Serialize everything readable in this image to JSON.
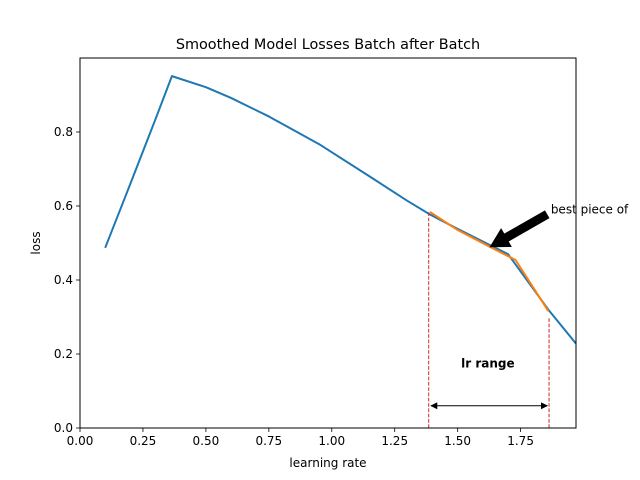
{
  "chart_data": {
    "type": "line",
    "title": "Smoothed Model Losses Batch after Batch",
    "xlabel": "learning rate",
    "ylabel": "loss",
    "xlim": [
      0.0,
      1.97
    ],
    "ylim": [
      0.0,
      1.0
    ],
    "xticks": [
      "0.00",
      "0.25",
      "0.50",
      "0.75",
      "1.00",
      "1.25",
      "1.50",
      "1.75"
    ],
    "yticks": [
      "0.0",
      "0.2",
      "0.4",
      "0.6",
      "0.8"
    ],
    "xtick_values": [
      0.0,
      0.25,
      0.5,
      0.75,
      1.0,
      1.25,
      1.5,
      1.75
    ],
    "ytick_values": [
      0.0,
      0.2,
      0.4,
      0.6,
      0.8
    ],
    "grid": false,
    "series": [
      {
        "color": "#1f77b4",
        "x": [
          0.1,
          0.2,
          0.3,
          0.365,
          0.5,
          0.6,
          0.75,
          0.95,
          1.15,
          1.3,
          1.39,
          1.5,
          1.7,
          1.86,
          1.97
        ],
        "y": [
          0.487,
          0.66,
          0.835,
          0.951,
          0.921,
          0.892,
          0.842,
          0.767,
          0.68,
          0.614,
          0.577,
          0.538,
          0.47,
          0.32,
          0.228
        ]
      },
      {
        "color": "#ff7f0e",
        "x": [
          1.39,
          1.5,
          1.63,
          1.73,
          1.86
        ],
        "y": [
          0.584,
          0.535,
          0.489,
          0.454,
          0.316
        ]
      }
    ],
    "vlines": [
      {
        "x": 1.385,
        "y0": 0.0,
        "y1": 0.584,
        "color": "#d62728"
      },
      {
        "x": 1.863,
        "y0": 0.0,
        "y1": 0.298,
        "color": "#d62728"
      }
    ],
    "annotations": [
      {
        "text": "best piece of",
        "x": 1.87,
        "y": 0.585,
        "arrow_to": {
          "x": 1.63,
          "y": 0.49
        },
        "bold": false
      },
      {
        "text": "lr range",
        "x": 1.62,
        "y": 0.175,
        "bold": true
      },
      {
        "text": "",
        "x": 1.39,
        "y": 0.06,
        "double_arrow_to": {
          "x": 1.86,
          "y": 0.06
        }
      }
    ]
  }
}
